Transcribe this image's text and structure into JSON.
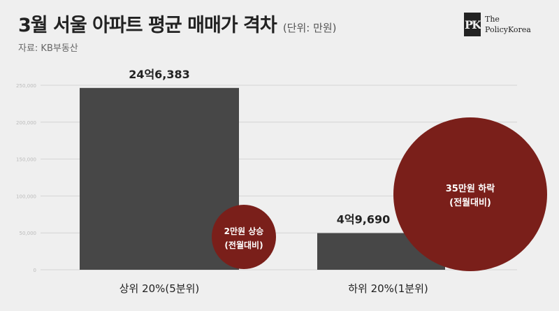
{
  "header": {
    "title": "3월 서울 아파트 평균 매매가 격차",
    "unit": "(단위: 만원)",
    "source": "자료: KB부동산"
  },
  "logo": {
    "mark": "PK",
    "line1": "The",
    "line2": "PolicyKorea"
  },
  "colors": {
    "bar": "#474747",
    "bubble": "#7a1f1a",
    "background": "#efefef",
    "grid": "#d4d4d4"
  },
  "chart_data": {
    "type": "bar",
    "categories": [
      "상위 20%(5분위)",
      "하위 20%(1분위)"
    ],
    "values": [
      246383,
      49690
    ],
    "value_labels": [
      "24억6,383",
      "4억9,690"
    ],
    "yticks": [
      0,
      50000,
      100000,
      150000,
      200000,
      250000
    ],
    "ytick_labels": [
      "0",
      "50,000",
      "100,000",
      "150,000",
      "200,000",
      "250,000"
    ],
    "ylim": [
      0,
      250000
    ],
    "grid": true,
    "annotations": [
      {
        "category": "상위 20%(5분위)",
        "value_change": 20000,
        "line1": "2만원 상승",
        "line2": "(전월대비)"
      },
      {
        "category": "하위 20%(1분위)",
        "value_change": -350000,
        "line1": "35만원 하락",
        "line2": "(전월대비)"
      }
    ]
  }
}
